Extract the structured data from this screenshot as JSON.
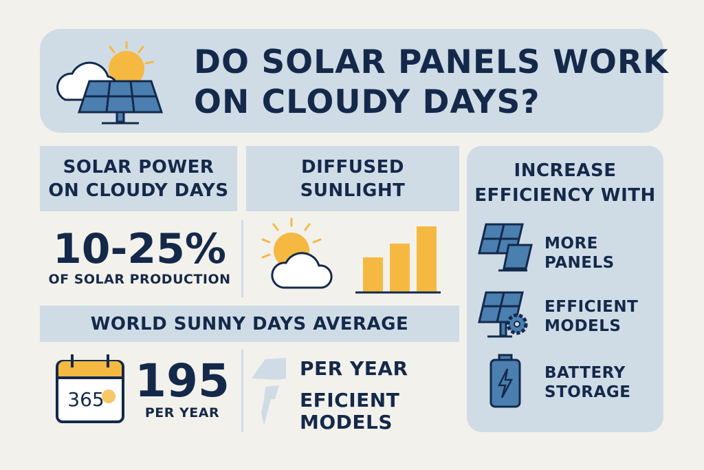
{
  "header": {
    "title_line1": "DO SOLAR PANELS WORK",
    "title_line2": "ON CLOUDY DAYS?",
    "icon": "sun-cloud-solar-panel-icon"
  },
  "solar_power": {
    "heading_line1": "SOLAR POWER",
    "heading_line2": "ON CLOUDY DAYS",
    "value": "10-25%",
    "caption": "OF SOLAR PRODUCTION"
  },
  "diffused": {
    "heading_line1": "DIFFUSED",
    "heading_line2": "SUNLIGHT",
    "icon": "sun-cloud-icon",
    "bars_relative": [
      0.5,
      0.7,
      0.95
    ]
  },
  "sunny_days": {
    "heading": "WORLD SUNNY DAYS AVERAGE",
    "calendar_text": "365",
    "value": "195",
    "caption": "PER YEAR",
    "side_line1": "PER YEAR",
    "side_line2": "EFICIENT",
    "side_line3": "MODELS"
  },
  "efficiency": {
    "heading_line1": "INCREASE",
    "heading_line2": "EFFICIENCY WITH",
    "items": [
      {
        "line1": "MORE",
        "line2": "PANELS",
        "icon": "solar-panels-icon"
      },
      {
        "line1": "EFFICIENT",
        "line2": "MODELS",
        "icon": "solar-panel-gear-icon"
      },
      {
        "line1": "BATTERY",
        "line2": "STORAGE",
        "icon": "battery-icon"
      }
    ]
  },
  "colors": {
    "background": "#f3f1ec",
    "panel": "#cfdce6",
    "navy": "#14294a",
    "yellow": "#f5b942",
    "blue": "#4a7fb0"
  }
}
